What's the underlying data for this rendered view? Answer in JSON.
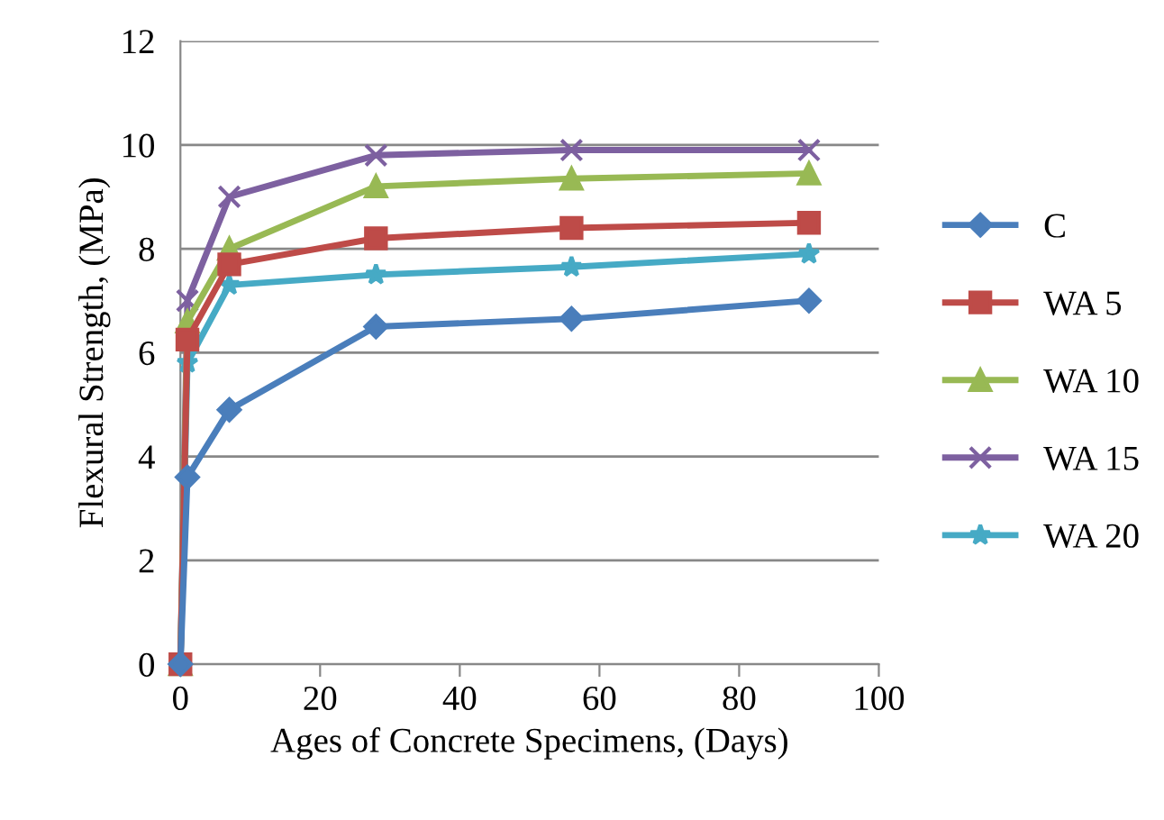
{
  "chart_data": {
    "type": "line",
    "xlabel": "Ages of Concrete Specimens, (Days)",
    "ylabel": "Flexural Strength, (MPa)",
    "x": [
      0,
      1,
      7,
      28,
      56,
      90
    ],
    "series": [
      {
        "name": "C",
        "color": "#4a7ebb",
        "marker": "diamond",
        "values": [
          0,
          3.6,
          4.9,
          6.5,
          6.65,
          7.0
        ]
      },
      {
        "name": "WA 5",
        "color": "#be4b48",
        "marker": "square",
        "values": [
          0,
          6.25,
          7.7,
          8.2,
          8.4,
          8.5
        ]
      },
      {
        "name": "WA 10",
        "color": "#98b954",
        "marker": "triangle",
        "values": [
          0,
          6.6,
          8.0,
          9.2,
          9.35,
          9.45
        ]
      },
      {
        "name": "WA 15",
        "color": "#7d60a0",
        "marker": "cross",
        "values": [
          0,
          7.0,
          9.0,
          9.8,
          9.9,
          9.9
        ]
      },
      {
        "name": "WA 20",
        "color": "#46aac5",
        "marker": "star",
        "values": [
          0,
          5.8,
          7.3,
          7.5,
          7.65,
          7.9
        ]
      }
    ],
    "xlim": [
      0,
      100
    ],
    "xticks": [
      0,
      20,
      40,
      60,
      80,
      100
    ],
    "ylim": [
      0,
      12
    ],
    "yticks": [
      0,
      2,
      4,
      6,
      8,
      10,
      12
    ],
    "grid": "y",
    "legend": "right",
    "line_style": "solid"
  }
}
